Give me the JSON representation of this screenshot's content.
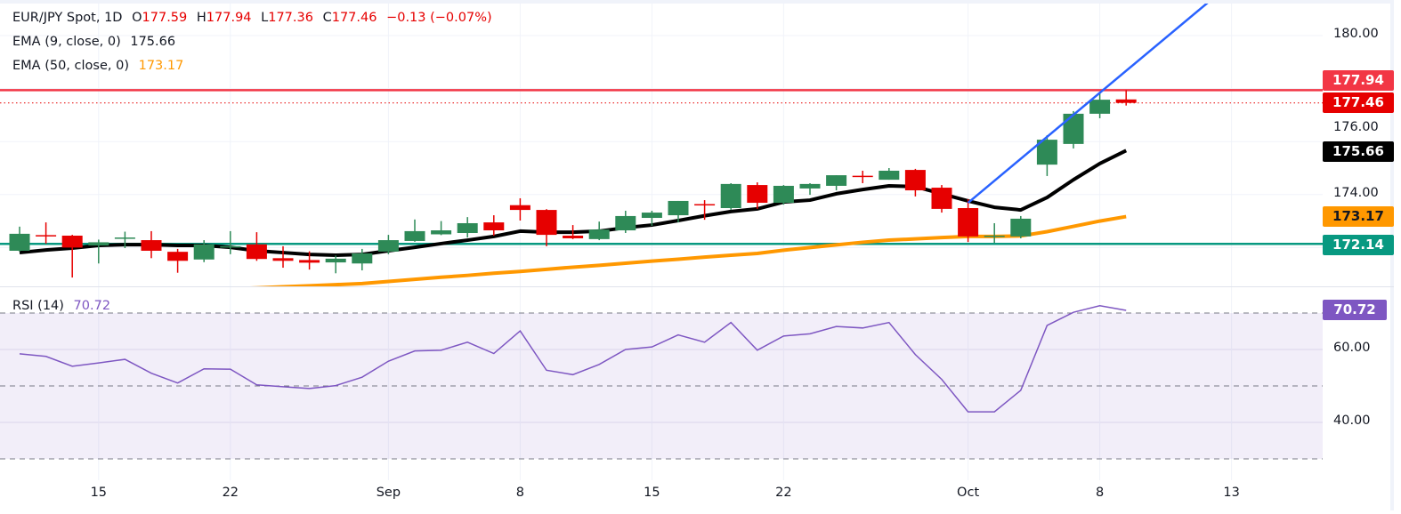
{
  "legend": {
    "symbol": "EUR/JPY Spot, 1D",
    "open_label": "O",
    "open": "177.59",
    "high_label": "H",
    "high": "177.94",
    "low_label": "L",
    "low": "177.36",
    "close_label": "C",
    "close": "177.46",
    "change": "−0.13 (−0.07%)",
    "ema9_label": "EMA (9, close, 0)",
    "ema9_value": "175.66",
    "ema50_label": "EMA (50, close, 0)",
    "ema50_value": "173.17",
    "rsi_label": "RSI (14)",
    "rsi_value": "70.72"
  },
  "price_axis": {
    "ticks": [
      "180.00",
      "176.00",
      "174.00"
    ],
    "badges": {
      "resistance": "177.94",
      "last_price": "177.46",
      "ema9": "175.66",
      "ema50": "173.17",
      "support": "172.14",
      "rsi": "70.72"
    }
  },
  "rsi_axis": {
    "ticks": [
      "60.00",
      "40.00"
    ]
  },
  "time_axis": {
    "ticks": [
      "15",
      "22",
      "Sep",
      "8",
      "15",
      "22",
      "Oct",
      "8",
      "13"
    ]
  },
  "colors": {
    "up": "#2e8a57",
    "down": "#e60000",
    "ema9": "#000000",
    "ema50": "#ff9800",
    "trendline": "#2962ff",
    "resistance": "#f23645",
    "support": "#089981",
    "rsi": "#7e57c2"
  },
  "chart_data": [
    {
      "type": "candlestick",
      "title": "EUR/JPY Spot, 1D",
      "ylim": [
        170.5,
        181.3
      ],
      "grid": true,
      "candles_columns": [
        "date",
        "open",
        "high",
        "low",
        "close"
      ],
      "candles": [
        [
          "Aug 12",
          171.88,
          172.79,
          171.85,
          172.52
        ],
        [
          "Aug 13",
          172.47,
          172.95,
          172.15,
          172.43
        ],
        [
          "Aug 14",
          172.45,
          172.48,
          170.87,
          172.0
        ],
        [
          "Aug 15",
          172.08,
          172.3,
          171.4,
          172.2
        ],
        [
          "Aug 18",
          172.35,
          172.6,
          171.98,
          172.38
        ],
        [
          "Aug 19",
          172.28,
          172.62,
          171.6,
          171.88
        ],
        [
          "Aug 20",
          171.84,
          171.95,
          171.05,
          171.5
        ],
        [
          "Aug 21",
          171.55,
          172.28,
          171.45,
          172.12
        ],
        [
          "Aug 22",
          172.02,
          172.62,
          171.75,
          172.05
        ],
        [
          "Aug 25",
          172.12,
          172.58,
          171.5,
          171.57
        ],
        [
          "Aug 26",
          171.6,
          172.05,
          171.24,
          171.5
        ],
        [
          "Aug 27",
          171.53,
          171.86,
          171.17,
          171.43
        ],
        [
          "Aug 28",
          171.44,
          171.7,
          171.03,
          171.58
        ],
        [
          "Aug 29",
          171.4,
          171.95,
          171.14,
          171.78
        ],
        [
          "Sep 1",
          171.85,
          172.48,
          171.75,
          172.28
        ],
        [
          "Sep 2",
          172.25,
          173.06,
          172.22,
          172.62
        ],
        [
          "Sep 3",
          172.5,
          173.0,
          172.47,
          172.65
        ],
        [
          "Sep 4",
          172.55,
          173.15,
          172.38,
          172.92
        ],
        [
          "Sep 5",
          172.95,
          173.22,
          172.45,
          172.65
        ],
        [
          "Sep 8",
          173.6,
          173.86,
          173.02,
          173.42
        ],
        [
          "Sep 9",
          173.42,
          173.45,
          172.05,
          172.48
        ],
        [
          "Sep 10",
          172.45,
          172.85,
          172.32,
          172.35
        ],
        [
          "Sep 11",
          172.32,
          172.98,
          172.28,
          172.68
        ],
        [
          "Sep 12",
          172.65,
          173.39,
          172.55,
          173.19
        ],
        [
          "Sep 15",
          173.12,
          173.39,
          172.82,
          173.32
        ],
        [
          "Sep 16",
          173.22,
          173.76,
          172.95,
          173.76
        ],
        [
          "Sep 17",
          173.64,
          173.79,
          173.05,
          173.6
        ],
        [
          "Sep 18",
          173.49,
          174.43,
          173.42,
          174.4
        ],
        [
          "Sep 19",
          174.36,
          174.46,
          173.46,
          173.69
        ],
        [
          "Sep 22",
          173.69,
          174.36,
          173.62,
          174.33
        ],
        [
          "Sep 23",
          174.23,
          174.43,
          173.99,
          174.4
        ],
        [
          "Sep 24",
          174.33,
          174.73,
          174.16,
          174.73
        ],
        [
          "Sep 25",
          174.71,
          174.9,
          174.43,
          174.68
        ],
        [
          "Sep 26",
          174.56,
          175.0,
          174.56,
          174.9
        ],
        [
          "Sep 29",
          174.93,
          174.97,
          173.93,
          174.16
        ],
        [
          "Sep 30",
          174.26,
          174.36,
          173.32,
          173.46
        ],
        [
          "Oct 1",
          173.49,
          173.83,
          172.21,
          172.42
        ],
        [
          "Oct 2",
          172.42,
          172.92,
          172.18,
          172.45
        ],
        [
          "Oct 3",
          172.42,
          173.19,
          172.35,
          173.09
        ],
        [
          "Oct 6",
          175.13,
          176.24,
          174.7,
          176.07
        ],
        [
          "Oct 7",
          175.91,
          177.15,
          175.74,
          177.05
        ],
        [
          "Oct 8",
          177.05,
          177.85,
          176.88,
          177.58
        ],
        [
          "Oct 9",
          177.59,
          177.94,
          177.36,
          177.46
        ]
      ],
      "series": [
        {
          "name": "EMA (9, close, 0)",
          "type": "line",
          "values": [
            171.81,
            171.91,
            171.98,
            172.08,
            172.11,
            172.11,
            172.08,
            172.08,
            172.01,
            171.88,
            171.81,
            171.74,
            171.71,
            171.74,
            171.88,
            172.01,
            172.15,
            172.28,
            172.42,
            172.62,
            172.58,
            172.58,
            172.62,
            172.75,
            172.85,
            173.02,
            173.2,
            173.36,
            173.46,
            173.72,
            173.79,
            174.03,
            174.19,
            174.33,
            174.3,
            174.03,
            173.76,
            173.52,
            173.42,
            173.89,
            174.56,
            175.17,
            175.66
          ]
        },
        {
          "name": "EMA (50, close, 0)",
          "type": "line",
          "values": [
            170.12,
            170.16,
            170.2,
            170.24,
            170.28,
            170.32,
            170.36,
            170.4,
            170.44,
            170.48,
            170.52,
            170.56,
            170.6,
            170.64,
            170.72,
            170.8,
            170.88,
            170.95,
            171.03,
            171.1,
            171.18,
            171.26,
            171.33,
            171.41,
            171.49,
            171.56,
            171.64,
            171.71,
            171.78,
            171.9,
            172.0,
            172.1,
            172.2,
            172.28,
            172.33,
            172.38,
            172.42,
            172.42,
            172.44,
            172.6,
            172.8,
            173.0,
            173.17
          ]
        }
      ],
      "horizontal_lines": [
        {
          "value": 177.94,
          "style": "solid",
          "role": "resistance"
        },
        {
          "value": 172.14,
          "style": "solid",
          "role": "support"
        },
        {
          "value": 177.46,
          "style": "dotted",
          "role": "last price"
        }
      ],
      "trendline": {
        "points": [
          [
            "Oct 1",
            173.69
          ],
          [
            "Oct 8",
            177.84
          ]
        ],
        "extend": "right"
      }
    },
    {
      "type": "line",
      "title": "RSI (14)",
      "ylim": [
        25,
        77
      ],
      "levels": [
        70,
        50,
        30
      ],
      "band": [
        30,
        70
      ],
      "series": [
        {
          "name": "RSI (14)",
          "values": [
            58.8,
            58.1,
            55.4,
            56.3,
            57.3,
            53.5,
            50.8,
            54.7,
            54.6,
            50.3,
            49.8,
            49.3,
            50.1,
            52.4,
            56.8,
            59.6,
            59.8,
            62.0,
            58.9,
            65.1,
            54.3,
            53.1,
            55.9,
            60.0,
            60.7,
            64.0,
            62.0,
            67.4,
            59.8,
            63.7,
            64.3,
            66.3,
            65.9,
            67.4,
            58.6,
            51.8,
            42.9,
            42.9,
            48.8,
            66.6,
            70.2,
            72.0,
            70.72
          ]
        }
      ]
    }
  ]
}
